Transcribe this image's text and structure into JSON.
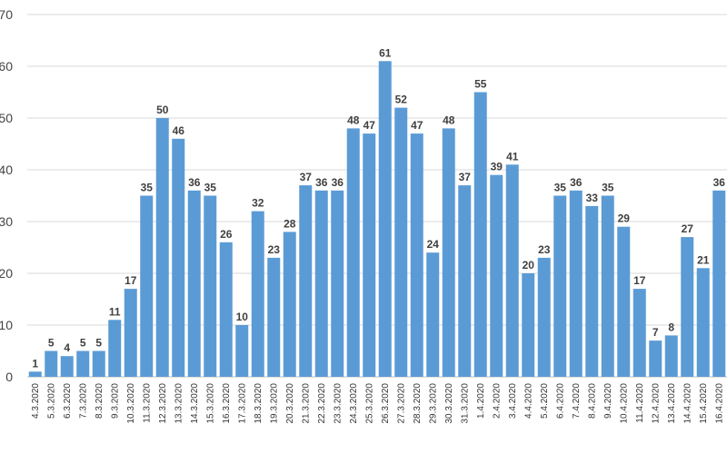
{
  "chart_data": {
    "type": "bar",
    "categories": [
      "4.3.2020",
      "5.3.2020",
      "6.3.2020",
      "7.3.2020",
      "8.3.2020",
      "9.3.2020",
      "10.3.2020",
      "11.3.2020",
      "12.3.2020",
      "13.3.2020",
      "14.3.2020",
      "15.3.2020",
      "16.3.2020",
      "17.3.2020",
      "18.3.2020",
      "19.3.2020",
      "20.3.2020",
      "21.3.2020",
      "22.3.2020",
      "23.3.2020",
      "24.3.2020",
      "25.3.2020",
      "26.3.2020",
      "27.3.2020",
      "28.3.2020",
      "29.3.2020",
      "30.3.2020",
      "31.3.2020",
      "1.4.2020",
      "2.4.2020",
      "3.4.2020",
      "4.4.2020",
      "5.4.2020",
      "6.4.2020",
      "7.4.2020",
      "8.4.2020",
      "9.4.2020",
      "10.4.2020",
      "11.4.2020",
      "12.4.2020",
      "13.4.2020",
      "14.4.2020",
      "15.4.2020",
      "16.4.2020"
    ],
    "values": [
      1,
      5,
      4,
      5,
      5,
      11,
      17,
      35,
      50,
      46,
      36,
      35,
      26,
      10,
      32,
      23,
      28,
      37,
      36,
      36,
      48,
      47,
      61,
      52,
      47,
      24,
      48,
      37,
      55,
      39,
      41,
      20,
      23,
      35,
      36,
      33,
      35,
      29,
      17,
      7,
      8,
      27,
      21,
      36
    ],
    "title": "",
    "xlabel": "",
    "ylabel": "",
    "ylim": [
      0,
      70
    ],
    "yticks": [
      "0",
      "10",
      "20",
      "30",
      "40",
      "50",
      "60",
      "70"
    ],
    "grid": true,
    "bar_color": "#5b9bd5"
  }
}
